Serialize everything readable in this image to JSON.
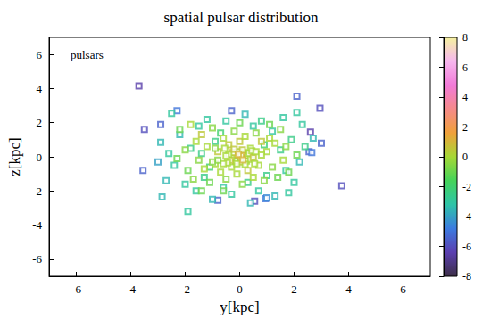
{
  "chart_data": {
    "type": "scatter",
    "title": "spatial pulsar distribution",
    "x_label": "y[kpc]",
    "y_label": "z[kpc]",
    "xlim": [
      -7,
      7
    ],
    "xticks": [
      -6,
      -4,
      -2,
      0,
      2,
      4,
      6
    ],
    "ylim": [
      -7,
      7
    ],
    "yticks": [
      -6,
      -4,
      -2,
      0,
      2,
      4,
      6
    ],
    "legend": "upper left",
    "colorbar": {
      "range": [
        -8,
        8
      ],
      "ticks": [
        -8,
        -6,
        -4,
        -2,
        0,
        2,
        4,
        6,
        8
      ]
    },
    "series": [
      {
        "name": "pulsars",
        "marker": "square",
        "values": [
          [
            -3.7,
            4.15,
            -6.5
          ],
          [
            -3.5,
            1.6,
            -6
          ],
          [
            -3.55,
            -0.8,
            -5.5
          ],
          [
            3.75,
            -1.7,
            -6
          ],
          [
            2.95,
            2.85,
            -6
          ],
          [
            2.1,
            3.55,
            -5.5
          ],
          [
            3.0,
            0.8,
            -5.5
          ],
          [
            2.6,
            1.45,
            -6.5
          ],
          [
            2.55,
            0.3,
            -5.5
          ],
          [
            2.65,
            0.25,
            -5
          ],
          [
            -2.9,
            1.9,
            -5.5
          ],
          [
            -0.8,
            -2.55,
            -5.5
          ],
          [
            0.55,
            -2.6,
            -6
          ],
          [
            0.95,
            -2.45,
            -5
          ],
          [
            -0.3,
            2.7,
            -5.5
          ],
          [
            -2.3,
            2.7,
            -5
          ],
          [
            1.0,
            -2.4,
            -4.5
          ],
          [
            -2.9,
            0.85,
            -3.5
          ],
          [
            -2.85,
            -2.35,
            -3.5
          ],
          [
            -1.9,
            -3.2,
            -3
          ],
          [
            -2.5,
            2.55,
            -3
          ],
          [
            -2.4,
            -0.5,
            -3
          ],
          [
            -2.2,
            1.3,
            -3.5
          ],
          [
            -2.0,
            -1.6,
            -3
          ],
          [
            -1.8,
            0.5,
            -2.5
          ],
          [
            -1.6,
            -2.0,
            -3
          ],
          [
            -1.5,
            1.8,
            -3
          ],
          [
            -1.3,
            -1.2,
            -2.5
          ],
          [
            -1.2,
            2.2,
            -3
          ],
          [
            -1.0,
            -2.5,
            -3.5
          ],
          [
            -0.9,
            0.9,
            -2.5
          ],
          [
            -0.6,
            -1.8,
            -3
          ],
          [
            -0.5,
            2.1,
            -3
          ],
          [
            -0.3,
            -2.2,
            -3
          ],
          [
            0.2,
            2.5,
            -3.5
          ],
          [
            0.3,
            -1.5,
            -2.5
          ],
          [
            0.5,
            1.8,
            -3
          ],
          [
            0.7,
            -2.0,
            -3
          ],
          [
            0.8,
            2.1,
            -2.5
          ],
          [
            1.0,
            -1.1,
            -2.5
          ],
          [
            1.2,
            1.5,
            -3
          ],
          [
            1.3,
            -2.3,
            -3.5
          ],
          [
            1.5,
            0.4,
            -2.5
          ],
          [
            1.6,
            2.3,
            -3
          ],
          [
            1.7,
            -0.8,
            -3
          ],
          [
            1.9,
            1.0,
            -2.5
          ],
          [
            2.0,
            -1.5,
            -3
          ],
          [
            2.1,
            2.6,
            -3
          ],
          [
            2.2,
            -0.3,
            -3.5
          ],
          [
            2.3,
            1.9,
            -3
          ],
          [
            2.4,
            0.6,
            -2.5
          ],
          [
            1.8,
            -2.1,
            -3
          ],
          [
            -2.6,
            0.2,
            -3
          ],
          [
            -2.7,
            -1.4,
            -3.5
          ],
          [
            -1.4,
            0.2,
            -2.5
          ],
          [
            -1.1,
            -0.6,
            -2
          ],
          [
            0.9,
            0.7,
            -2
          ],
          [
            -0.7,
            1.4,
            -2
          ],
          [
            0.4,
            -2.7,
            -3.5
          ],
          [
            2.7,
            1.1,
            -3.5
          ],
          [
            -3.0,
            -0.3,
            -4
          ],
          [
            -2.2,
            1.6,
            -1
          ],
          [
            -2.0,
            0.4,
            -0.5
          ],
          [
            -1.9,
            -0.8,
            -1
          ],
          [
            -1.8,
            1.9,
            0
          ],
          [
            -1.7,
            -1.3,
            -0.5
          ],
          [
            -1.6,
            0.9,
            0
          ],
          [
            -1.5,
            -0.2,
            -0.5
          ],
          [
            -1.4,
            1.3,
            0.5
          ],
          [
            -1.3,
            -0.7,
            0
          ],
          [
            -1.2,
            0.6,
            0
          ],
          [
            -1.1,
            -1.5,
            -1
          ],
          [
            -1.0,
            1.7,
            -0.5
          ],
          [
            -0.9,
            -0.4,
            0
          ],
          [
            -0.8,
            0.3,
            0.5
          ],
          [
            -0.7,
            -0.9,
            0
          ],
          [
            -0.6,
            1.1,
            0
          ],
          [
            -0.5,
            -1.3,
            -0.5
          ],
          [
            -0.4,
            0.7,
            0.5
          ],
          [
            -0.3,
            -0.6,
            0
          ],
          [
            -0.2,
            1.5,
            -0.5
          ],
          [
            -0.1,
            -1.0,
            0
          ],
          [
            0.0,
            0.9,
            0.5
          ],
          [
            0.1,
            -1.6,
            -0.5
          ],
          [
            0.2,
            1.2,
            0
          ],
          [
            0.3,
            -0.8,
            0.5
          ],
          [
            0.4,
            0.5,
            0
          ],
          [
            0.5,
            -1.2,
            0
          ],
          [
            0.6,
            1.4,
            -0.5
          ],
          [
            0.7,
            -0.5,
            0
          ],
          [
            0.8,
            0.9,
            0.5
          ],
          [
            0.9,
            -1.4,
            -0.5
          ],
          [
            1.0,
            0.3,
            0
          ],
          [
            1.1,
            1.1,
            0
          ],
          [
            1.2,
            -0.6,
            -0.5
          ],
          [
            1.3,
            0.8,
            0
          ],
          [
            1.4,
            -1.2,
            -1
          ],
          [
            1.5,
            1.6,
            -0.5
          ],
          [
            1.6,
            -0.2,
            0
          ],
          [
            1.7,
            0.6,
            -0.5
          ],
          [
            1.8,
            -0.9,
            -1
          ],
          [
            -1.4,
            -2.0,
            -1
          ],
          [
            0.0,
            2.0,
            -1
          ],
          [
            -0.6,
            -2.0,
            -1
          ],
          [
            1.1,
            1.9,
            -1
          ],
          [
            2.1,
            0.1,
            -1
          ],
          [
            -2.3,
            -0.1,
            -1
          ],
          [
            0,
            0,
            0.5
          ],
          [
            0.1,
            0.1,
            0.5
          ],
          [
            -0.1,
            -0.1,
            0.5
          ],
          [
            0.2,
            -0.1,
            0
          ],
          [
            -0.2,
            0.1,
            0.5
          ],
          [
            0.15,
            0.25,
            0
          ],
          [
            -0.15,
            -0.25,
            0
          ],
          [
            0.3,
            0.05,
            0.5
          ],
          [
            -0.3,
            -0.05,
            0
          ],
          [
            0.05,
            -0.3,
            0.5
          ],
          [
            -0.05,
            0.3,
            0
          ],
          [
            0.25,
            -0.25,
            0
          ],
          [
            -0.25,
            0.25,
            0.5
          ],
          [
            0.35,
            0.2,
            0
          ],
          [
            -0.35,
            -0.2,
            0.5
          ],
          [
            0.4,
            -0.15,
            0
          ],
          [
            -0.4,
            0.15,
            0
          ],
          [
            0.1,
            0.4,
            0.5
          ],
          [
            -0.1,
            -0.4,
            0
          ],
          [
            0.2,
            -0.45,
            0
          ],
          [
            -0.2,
            0.45,
            0.5
          ],
          [
            0.45,
            0.35,
            0
          ],
          [
            -0.45,
            -0.35,
            0
          ],
          [
            0.5,
            -0.05,
            0.5
          ],
          [
            -0.5,
            0.05,
            0
          ],
          [
            0.05,
            0.05,
            1
          ],
          [
            -0.05,
            0.15,
            1
          ],
          [
            0.12,
            -0.18,
            1
          ],
          [
            -0.6,
            -0.4,
            0
          ],
          [
            0.6,
            0.3,
            0
          ],
          [
            -0.55,
            0.5,
            0
          ],
          [
            0.55,
            -0.4,
            0
          ],
          [
            -0.8,
            -0.2,
            -0.5
          ],
          [
            0.8,
            0.1,
            0
          ],
          [
            -0.9,
            0.5,
            -0.5
          ],
          [
            -1.0,
            -0.3,
            -0.5
          ]
        ]
      }
    ]
  }
}
